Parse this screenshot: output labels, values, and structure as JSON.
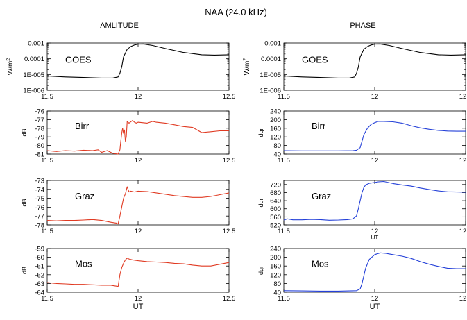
{
  "figure": {
    "title": "NAA (24.0 kHz)",
    "left_column_title": "AMLITUDE",
    "right_column_title": "PHASE"
  },
  "colors": {
    "goes": "#000000",
    "amplitude": "#e03a22",
    "phase": "#2440d8",
    "axis": "#000000"
  },
  "chart_data": [
    {
      "id": "amp-goes",
      "type": "line",
      "column": "amplitude",
      "label": "GOES",
      "ylabel": "W/m2",
      "yscale": "log",
      "ylim": [
        1e-06,
        0.001
      ],
      "yticks": [
        "0.001",
        "0.0001",
        "1E-005",
        "1E-006"
      ],
      "xlim": [
        11.5,
        12.5
      ],
      "xticks": [
        "11.5",
        "12",
        "12.5"
      ],
      "xlabel": "",
      "color": "#000000",
      "x": [
        11.5,
        11.6,
        11.7,
        11.8,
        11.86,
        11.89,
        11.9,
        11.91,
        11.92,
        11.94,
        11.96,
        11.98,
        12.0,
        12.03,
        12.08,
        12.15,
        12.25,
        12.35,
        12.42,
        12.5
      ],
      "y": [
        8e-06,
        7e-06,
        6.5e-06,
        6e-06,
        6e-06,
        7e-06,
        1.2e-05,
        3e-05,
        0.00013,
        0.0004,
        0.0006,
        0.00075,
        0.00085,
        0.00087,
        0.0007,
        0.00045,
        0.00025,
        0.00018,
        0.00017,
        0.00018
      ]
    },
    {
      "id": "amp-birr",
      "type": "line",
      "column": "amplitude",
      "label": "Birr",
      "ylabel": "dB",
      "ylim": [
        -81,
        -76
      ],
      "yticks": [
        "-76",
        "-77",
        "-78",
        "-79",
        "-80",
        "-81"
      ],
      "xlim": [
        11.5,
        12.5
      ],
      "xticks": [
        "11.5",
        "12",
        "12.5"
      ],
      "xlabel": "",
      "color": "#e03a22",
      "x": [
        11.5,
        11.55,
        11.6,
        11.65,
        11.7,
        11.75,
        11.78,
        11.8,
        11.83,
        11.86,
        11.89,
        11.9,
        11.905,
        11.91,
        11.915,
        11.92,
        11.925,
        11.93,
        11.935,
        11.94,
        11.95,
        11.97,
        11.98,
        11.99,
        12.0,
        12.05,
        12.08,
        12.1,
        12.15,
        12.2,
        12.25,
        12.3,
        12.35,
        12.4,
        12.45,
        12.5
      ],
      "y": [
        -80.6,
        -80.7,
        -80.6,
        -80.65,
        -80.55,
        -80.6,
        -80.5,
        -80.8,
        -80.6,
        -80.9,
        -81.0,
        -80.5,
        -79.5,
        -78.6,
        -78.0,
        -78.6,
        -78.2,
        -79.5,
        -79.0,
        -77.2,
        -77.4,
        -77.1,
        -77.3,
        -77.4,
        -77.3,
        -77.4,
        -77.2,
        -77.3,
        -77.4,
        -77.6,
        -77.8,
        -77.9,
        -78.5,
        -78.4,
        -78.3,
        -78.3
      ]
    },
    {
      "id": "amp-graz",
      "type": "line",
      "column": "amplitude",
      "label": "Graz",
      "ylabel": "dB",
      "ylim": [
        -78,
        -73
      ],
      "yticks": [
        "-73",
        "-74",
        "-75",
        "-76",
        "-77",
        "-78"
      ],
      "xlim": [
        11.5,
        12.5
      ],
      "xticks": [
        "11.5",
        "12",
        "12.5"
      ],
      "xlabel": "",
      "color": "#e03a22",
      "x": [
        11.5,
        11.55,
        11.6,
        11.65,
        11.7,
        11.75,
        11.8,
        11.85,
        11.88,
        11.89,
        11.9,
        11.91,
        11.92,
        11.93,
        11.94,
        11.95,
        11.96,
        11.98,
        12.0,
        12.05,
        12.1,
        12.2,
        12.3,
        12.35,
        12.4,
        12.45,
        12.5
      ],
      "y": [
        -77.5,
        -77.55,
        -77.5,
        -77.5,
        -77.45,
        -77.4,
        -77.5,
        -77.7,
        -77.8,
        -77.9,
        -77.0,
        -76.0,
        -75.0,
        -74.5,
        -73.7,
        -74.3,
        -74.2,
        -74.3,
        -74.2,
        -74.25,
        -74.4,
        -74.7,
        -74.9,
        -74.9,
        -74.8,
        -74.6,
        -74.4
      ]
    },
    {
      "id": "amp-mos",
      "type": "line",
      "column": "amplitude",
      "label": "Mos",
      "ylabel": "dB",
      "ylim": [
        -64,
        -59
      ],
      "yticks": [
        "-59",
        "-60",
        "-61",
        "-62",
        "-63",
        "-64"
      ],
      "xlim": [
        11.5,
        12.5
      ],
      "xticks": [
        "11.5",
        "12",
        "12.5"
      ],
      "xlabel": "UT",
      "color": "#e03a22",
      "x": [
        11.5,
        11.55,
        11.6,
        11.65,
        11.7,
        11.75,
        11.8,
        11.85,
        11.88,
        11.89,
        11.9,
        11.91,
        11.92,
        11.93,
        11.94,
        11.95,
        11.97,
        12.0,
        12.05,
        12.1,
        12.15,
        12.2,
        12.25,
        12.3,
        12.35,
        12.4,
        12.45,
        12.5
      ],
      "y": [
        -62.9,
        -63.0,
        -63.05,
        -63.1,
        -63.1,
        -63.15,
        -63.2,
        -63.2,
        -63.3,
        -63.35,
        -62.0,
        -61.2,
        -60.7,
        -60.3,
        -60.1,
        -60.2,
        -60.3,
        -60.4,
        -60.5,
        -60.55,
        -60.6,
        -60.7,
        -60.75,
        -60.9,
        -61.0,
        -61.0,
        -60.8,
        -60.6
      ]
    },
    {
      "id": "phase-goes",
      "type": "line",
      "column": "phase",
      "label": "GOES",
      "ylabel": "W/m2",
      "yscale": "log",
      "ylim": [
        1e-06,
        0.001
      ],
      "yticks": [
        "0.001",
        "0.0001",
        "1E-005",
        "1E-006"
      ],
      "xlim": [
        11.5,
        12.5
      ],
      "xticks": [
        "11.5",
        "12",
        "12.5"
      ],
      "xlabel": "",
      "color": "#000000",
      "x": [
        11.5,
        11.6,
        11.7,
        11.8,
        11.86,
        11.89,
        11.9,
        11.91,
        11.92,
        11.94,
        11.96,
        11.98,
        12.0,
        12.03,
        12.08,
        12.15,
        12.25,
        12.35,
        12.42,
        12.5
      ],
      "y": [
        8e-06,
        7e-06,
        6.5e-06,
        6e-06,
        6e-06,
        7e-06,
        1.2e-05,
        3e-05,
        0.00013,
        0.0004,
        0.0006,
        0.00075,
        0.00085,
        0.00087,
        0.0007,
        0.00045,
        0.00025,
        0.00018,
        0.00017,
        0.00018
      ]
    },
    {
      "id": "phase-birr",
      "type": "line",
      "column": "phase",
      "label": "Birr",
      "ylabel": "dgr",
      "ylim": [
        40,
        240
      ],
      "yticks": [
        "240",
        "200",
        "160",
        "120",
        "80",
        "40"
      ],
      "xlim": [
        11.5,
        12.5
      ],
      "xticks": [
        "11.5",
        "12",
        "12.5"
      ],
      "xlabel": "",
      "color": "#2440d8",
      "x": [
        11.5,
        11.6,
        11.7,
        11.8,
        11.88,
        11.9,
        11.92,
        11.93,
        11.94,
        11.96,
        11.98,
        12.0,
        12.02,
        12.05,
        12.1,
        12.15,
        12.2,
        12.25,
        12.3,
        12.35,
        12.4,
        12.45,
        12.5
      ],
      "y": [
        56,
        55,
        55,
        55,
        56,
        58,
        70,
        100,
        130,
        160,
        178,
        186,
        192,
        192,
        190,
        184,
        172,
        162,
        155,
        150,
        147,
        146,
        146
      ]
    },
    {
      "id": "phase-graz",
      "type": "line",
      "column": "phase",
      "label": "Graz",
      "ylabel": "dgr",
      "ylim": [
        520,
        740
      ],
      "yticks": [
        "720",
        "680",
        "640",
        "600",
        "560",
        "520"
      ],
      "xlim": [
        11.5,
        12.5
      ],
      "xticks": [
        "11.5",
        "12",
        "12.5"
      ],
      "xlabel": "UT",
      "color": "#2440d8",
      "x": [
        11.5,
        11.52,
        11.55,
        11.6,
        11.65,
        11.7,
        11.75,
        11.8,
        11.85,
        11.88,
        11.9,
        11.91,
        11.92,
        11.93,
        11.94,
        11.95,
        11.97,
        12.0,
        12.02,
        12.05,
        12.1,
        12.15,
        12.2,
        12.25,
        12.3,
        12.35,
        12.4,
        12.45,
        12.5
      ],
      "y": [
        544,
        550,
        545,
        545,
        547,
        546,
        543,
        544,
        546,
        550,
        565,
        600,
        640,
        680,
        705,
        718,
        726,
        730,
        733,
        735,
        725,
        718,
        712,
        703,
        695,
        688,
        684,
        683,
        682
      ]
    },
    {
      "id": "phase-mos",
      "type": "line",
      "column": "phase",
      "label": "Mos",
      "ylabel": "dgr",
      "ylim": [
        40,
        240
      ],
      "yticks": [
        "240",
        "200",
        "160",
        "120",
        "80",
        "40"
      ],
      "xlim": [
        11.5,
        12.5
      ],
      "xticks": [
        "11.5",
        "12",
        "12.5"
      ],
      "xlabel": "UT",
      "color": "#2440d8",
      "x": [
        11.5,
        11.6,
        11.7,
        11.8,
        11.86,
        11.9,
        11.92,
        11.93,
        11.94,
        11.95,
        11.97,
        12.0,
        12.03,
        12.06,
        12.1,
        12.15,
        12.2,
        12.25,
        12.3,
        12.35,
        12.4,
        12.45,
        12.5
      ],
      "y": [
        47,
        46,
        45,
        45,
        46,
        47,
        55,
        80,
        115,
        150,
        190,
        212,
        220,
        218,
        212,
        205,
        195,
        180,
        168,
        158,
        150,
        148,
        148
      ]
    }
  ]
}
